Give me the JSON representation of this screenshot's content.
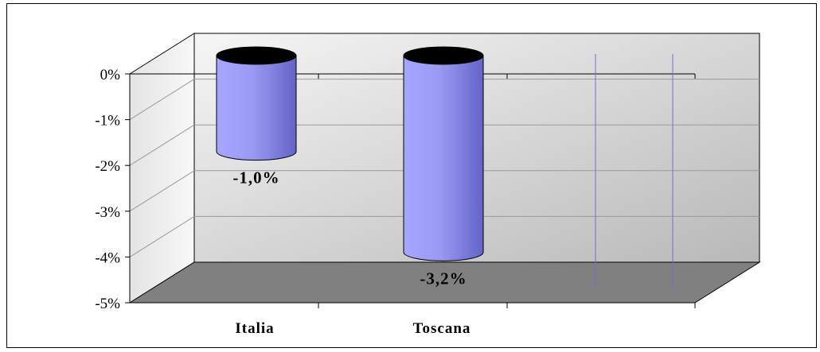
{
  "chart_data": {
    "type": "bar",
    "style": "3d-cylinder",
    "categories": [
      "Italia",
      "Toscana"
    ],
    "values": [
      -1.0,
      -3.2
    ],
    "data_labels": [
      "-1,0%",
      "-3,2%"
    ],
    "ylim": [
      -5,
      0
    ],
    "yticks": [
      0,
      -1,
      -2,
      -3,
      -4,
      -5
    ],
    "ytick_labels": [
      "0%",
      "-1%",
      "-2%",
      "-3%",
      "-4%",
      "-5%"
    ],
    "grid": true,
    "legend": "none",
    "title": "",
    "xlabel": "",
    "ylabel": "",
    "colors": {
      "bar_light": "#a0a0ff",
      "bar_dark": "#6a6ad0",
      "bar_top": "#000000",
      "wall_light": "#f4f4f4",
      "wall_dark": "#bdbdbd",
      "floor": "#808080",
      "thin_series": "#7070d0"
    }
  }
}
